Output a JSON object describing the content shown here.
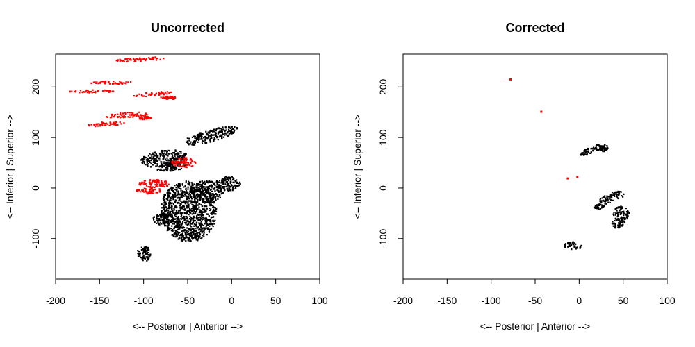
{
  "chart_data": [
    {
      "type": "scatter",
      "title": "Uncorrected",
      "xlabel": "<-- Posterior  |  Anterior -->",
      "ylabel": "<-- Inferior  |  Superior -->",
      "xlim": [
        -200,
        100
      ],
      "ylim": [
        -180,
        265
      ],
      "xticks": [
        -200,
        -150,
        -100,
        -50,
        0,
        50,
        100
      ],
      "yticks": [
        -100,
        0,
        100,
        200
      ],
      "colors": {
        "black": "#000000",
        "red": "#ff0000"
      },
      "series": [
        {
          "color": "#000000",
          "regions": [
            {
              "cx": -25,
              "cy": 105,
              "rx": 32,
              "ry": 12,
              "angle": -15
            },
            {
              "cx": -78,
              "cy": 60,
              "rx": 27,
              "ry": 16,
              "angle": -8
            },
            {
              "cx": -70,
              "cy": 44,
              "rx": 18,
              "ry": 9,
              "angle": -5
            },
            {
              "cx": -50,
              "cy": -45,
              "rx": 32,
              "ry": 60,
              "angle": -12
            },
            {
              "cx": -28,
              "cy": -5,
              "rx": 18,
              "ry": 22,
              "angle": 0
            },
            {
              "cx": -5,
              "cy": 10,
              "rx": 14,
              "ry": 15,
              "angle": 0
            },
            {
              "cx": -78,
              "cy": -60,
              "rx": 12,
              "ry": 12,
              "angle": 0
            },
            {
              "cx": -100,
              "cy": -128,
              "rx": 8,
              "ry": 16,
              "angle": 0
            }
          ]
        },
        {
          "color": "#ff0000",
          "regions": [
            {
              "cx": -105,
              "cy": 256,
              "rx": 28,
              "ry": 4,
              "angle": -3
            },
            {
              "cx": -138,
              "cy": 210,
              "rx": 27,
              "ry": 3,
              "angle": 0
            },
            {
              "cx": -160,
              "cy": 193,
              "rx": 27,
              "ry": 3,
              "angle": 0
            },
            {
              "cx": -90,
              "cy": 187,
              "rx": 22,
              "ry": 4,
              "angle": -5
            },
            {
              "cx": -72,
              "cy": 180,
              "rx": 10,
              "ry": 3,
              "angle": 0
            },
            {
              "cx": -120,
              "cy": 146,
              "rx": 25,
              "ry": 5,
              "angle": -3
            },
            {
              "cx": -100,
              "cy": 140,
              "rx": 8,
              "ry": 3,
              "angle": 0
            },
            {
              "cx": -145,
              "cy": 128,
              "rx": 22,
              "ry": 4,
              "angle": -3
            },
            {
              "cx": -55,
              "cy": 52,
              "rx": 14,
              "ry": 10,
              "angle": 0
            },
            {
              "cx": -88,
              "cy": 10,
              "rx": 18,
              "ry": 8,
              "angle": 0
            },
            {
              "cx": -95,
              "cy": -3,
              "rx": 14,
              "ry": 7,
              "angle": 0
            }
          ]
        }
      ]
    },
    {
      "type": "scatter",
      "title": "Corrected",
      "xlabel": "<-- Posterior  |  Anterior -->",
      "ylabel": "<-- Inferior  |  Superior -->",
      "xlim": [
        -200,
        100
      ],
      "ylim": [
        -180,
        265
      ],
      "xticks": [
        -200,
        -150,
        -100,
        -50,
        0,
        50,
        100
      ],
      "yticks": [
        -100,
        0,
        100,
        200
      ],
      "colors": {
        "black": "#000000",
        "red": "#ff0000"
      },
      "series": [
        {
          "color": "#000000",
          "regions": [
            {
              "cx": 8,
              "cy": 73,
              "rx": 8,
              "ry": 6,
              "angle": -20
            },
            {
              "cx": 20,
              "cy": 82,
              "rx": 5,
              "ry": 7,
              "angle": 0
            },
            {
              "cx": 28,
              "cy": 80,
              "rx": 4,
              "ry": 7,
              "angle": 0
            },
            {
              "cx": 42,
              "cy": -12,
              "rx": 8,
              "ry": 8,
              "angle": 0
            },
            {
              "cx": 30,
              "cy": -22,
              "rx": 8,
              "ry": 8,
              "angle": 0
            },
            {
              "cx": 22,
              "cy": -35,
              "rx": 6,
              "ry": 6,
              "angle": 0
            },
            {
              "cx": 47,
              "cy": -50,
              "rx": 9,
              "ry": 16,
              "angle": 0
            },
            {
              "cx": 43,
              "cy": -68,
              "rx": 9,
              "ry": 10,
              "angle": -20
            },
            {
              "cx": -8,
              "cy": -113,
              "rx": 10,
              "ry": 8,
              "angle": 0
            }
          ]
        },
        {
          "color": "#ff0000",
          "points": [
            {
              "x": -78,
              "y": 215
            },
            {
              "x": -43,
              "y": 151
            },
            {
              "x": -13,
              "y": 19
            },
            {
              "x": -2,
              "y": 22
            }
          ]
        }
      ]
    }
  ]
}
